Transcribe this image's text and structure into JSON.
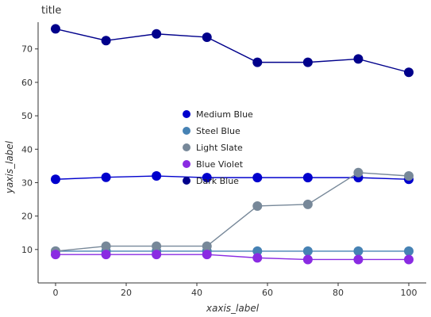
{
  "chart_data": {
    "type": "line",
    "title": "title",
    "xlabel": "xaxis_label",
    "ylabel": "yaxis_label",
    "xlim": [
      0,
      100
    ],
    "ylim": [
      0,
      78
    ],
    "x_ticks": [
      0,
      20,
      40,
      60,
      80,
      100
    ],
    "y_ticks": [
      10,
      20,
      30,
      40,
      50,
      60,
      70
    ],
    "grid": false,
    "legend_position": "center",
    "x": [
      0,
      14.29,
      28.57,
      42.86,
      57.14,
      71.43,
      85.71,
      100
    ],
    "series": [
      {
        "name": "Medium Blue",
        "color": "#0000cd",
        "values": [
          31,
          31.6,
          32,
          31.5,
          31.5,
          31.5,
          31.5,
          31
        ]
      },
      {
        "name": "Steel Blue",
        "color": "#4682b4",
        "values": [
          9.5,
          9.5,
          9.5,
          9.5,
          9.5,
          9.5,
          9.5,
          9.5
        ]
      },
      {
        "name": "Light Slate",
        "color": "#778899",
        "values": [
          9.5,
          11,
          11,
          11,
          23,
          23.5,
          33,
          32
        ]
      },
      {
        "name": "Blue Violet",
        "color": "#8a2be2",
        "values": [
          8.5,
          8.5,
          8.5,
          8.5,
          7.5,
          7,
          7,
          7
        ]
      },
      {
        "name": "Dark Blue",
        "color": "#00008b",
        "values": [
          76,
          72.5,
          74.5,
          73.5,
          66,
          66,
          67,
          63
        ]
      }
    ]
  }
}
